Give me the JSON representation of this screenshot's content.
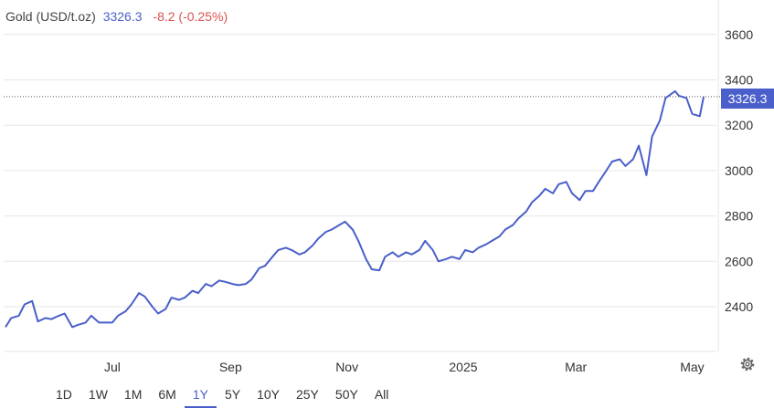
{
  "header": {
    "name": "Gold (USD/t.oz)",
    "price": "3326.3",
    "change": "-8.2 (-0.25%)"
  },
  "price_tag": "3326.3",
  "ranges": [
    {
      "label": "1D",
      "active": false
    },
    {
      "label": "1W",
      "active": false
    },
    {
      "label": "1M",
      "active": false
    },
    {
      "label": "6M",
      "active": false
    },
    {
      "label": "1Y",
      "active": true
    },
    {
      "label": "5Y",
      "active": false
    },
    {
      "label": "10Y",
      "active": false
    },
    {
      "label": "25Y",
      "active": false
    },
    {
      "label": "50Y",
      "active": false
    },
    {
      "label": "All",
      "active": false
    }
  ],
  "colors": {
    "line": "#4a5fc9",
    "negative": "#d9534f",
    "grid": "#e6e6e6"
  },
  "icons": {
    "settings": "gear-icon"
  },
  "chart_data": {
    "type": "line",
    "series": [
      {
        "name": "Gold (USD/t.oz)",
        "x": [
          "2024-05-06",
          "2024-05-09",
          "2024-05-13",
          "2024-05-16",
          "2024-05-20",
          "2024-05-23",
          "2024-05-27",
          "2024-05-30",
          "2024-06-03",
          "2024-06-06",
          "2024-06-10",
          "2024-06-13",
          "2024-06-17",
          "2024-06-20",
          "2024-06-24",
          "2024-06-27",
          "2024-07-01",
          "2024-07-04",
          "2024-07-08",
          "2024-07-11",
          "2024-07-15",
          "2024-07-18",
          "2024-07-22",
          "2024-07-25",
          "2024-07-29",
          "2024-08-01",
          "2024-08-05",
          "2024-08-08",
          "2024-08-12",
          "2024-08-15",
          "2024-08-19",
          "2024-08-22",
          "2024-08-26",
          "2024-08-29",
          "2024-09-02",
          "2024-09-05",
          "2024-09-09",
          "2024-09-12",
          "2024-09-16",
          "2024-09-19",
          "2024-09-23",
          "2024-09-26",
          "2024-09-30",
          "2024-10-03",
          "2024-10-07",
          "2024-10-10",
          "2024-10-14",
          "2024-10-17",
          "2024-10-21",
          "2024-10-24",
          "2024-10-28",
          "2024-10-31",
          "2024-11-04",
          "2024-11-07",
          "2024-11-11",
          "2024-11-14",
          "2024-11-18",
          "2024-11-21",
          "2024-11-25",
          "2024-11-28",
          "2024-12-02",
          "2024-12-05",
          "2024-12-09",
          "2024-12-12",
          "2024-12-16",
          "2024-12-19",
          "2024-12-23",
          "2024-12-26",
          "2024-12-30",
          "2025-01-02",
          "2025-01-06",
          "2025-01-09",
          "2025-01-13",
          "2025-01-16",
          "2025-01-20",
          "2025-01-23",
          "2025-01-27",
          "2025-01-30",
          "2025-02-03",
          "2025-02-06",
          "2025-02-10",
          "2025-02-13",
          "2025-02-17",
          "2025-02-20",
          "2025-02-24",
          "2025-02-27",
          "2025-03-03",
          "2025-03-06",
          "2025-03-10",
          "2025-03-13",
          "2025-03-17",
          "2025-03-20",
          "2025-03-24",
          "2025-03-27",
          "2025-03-31",
          "2025-04-03",
          "2025-04-07",
          "2025-04-10",
          "2025-04-14",
          "2025-04-17",
          "2025-04-22",
          "2025-04-24",
          "2025-04-28",
          "2025-05-01",
          "2025-05-05",
          "2025-05-07"
        ],
        "values": [
          2310,
          2350,
          2360,
          2410,
          2425,
          2335,
          2350,
          2345,
          2360,
          2370,
          2310,
          2320,
          2330,
          2360,
          2330,
          2330,
          2330,
          2360,
          2380,
          2410,
          2460,
          2445,
          2400,
          2370,
          2390,
          2440,
          2430,
          2440,
          2470,
          2460,
          2500,
          2490,
          2515,
          2510,
          2500,
          2495,
          2500,
          2520,
          2570,
          2580,
          2620,
          2650,
          2660,
          2650,
          2630,
          2640,
          2670,
          2700,
          2730,
          2740,
          2760,
          2775,
          2740,
          2690,
          2610,
          2565,
          2560,
          2620,
          2640,
          2620,
          2640,
          2630,
          2650,
          2690,
          2650,
          2600,
          2610,
          2620,
          2610,
          2650,
          2640,
          2660,
          2675,
          2690,
          2710,
          2740,
          2760,
          2790,
          2820,
          2860,
          2890,
          2920,
          2900,
          2940,
          2950,
          2900,
          2870,
          2910,
          2910,
          2950,
          3000,
          3040,
          3050,
          3020,
          3050,
          3110,
          2980,
          3150,
          3220,
          3320,
          3350,
          3330,
          3320,
          3250,
          3240,
          3326
        ]
      }
    ],
    "x_ticks": [
      "Jul",
      "Sep",
      "Nov",
      "2025",
      "Mar",
      "May"
    ],
    "y_ticks": [
      2400,
      2600,
      2800,
      3000,
      3200,
      3400,
      3600
    ],
    "ylim": [
      2200,
      3700
    ],
    "last_value": 3326.3,
    "grid": "horizontal",
    "legend": "none"
  }
}
